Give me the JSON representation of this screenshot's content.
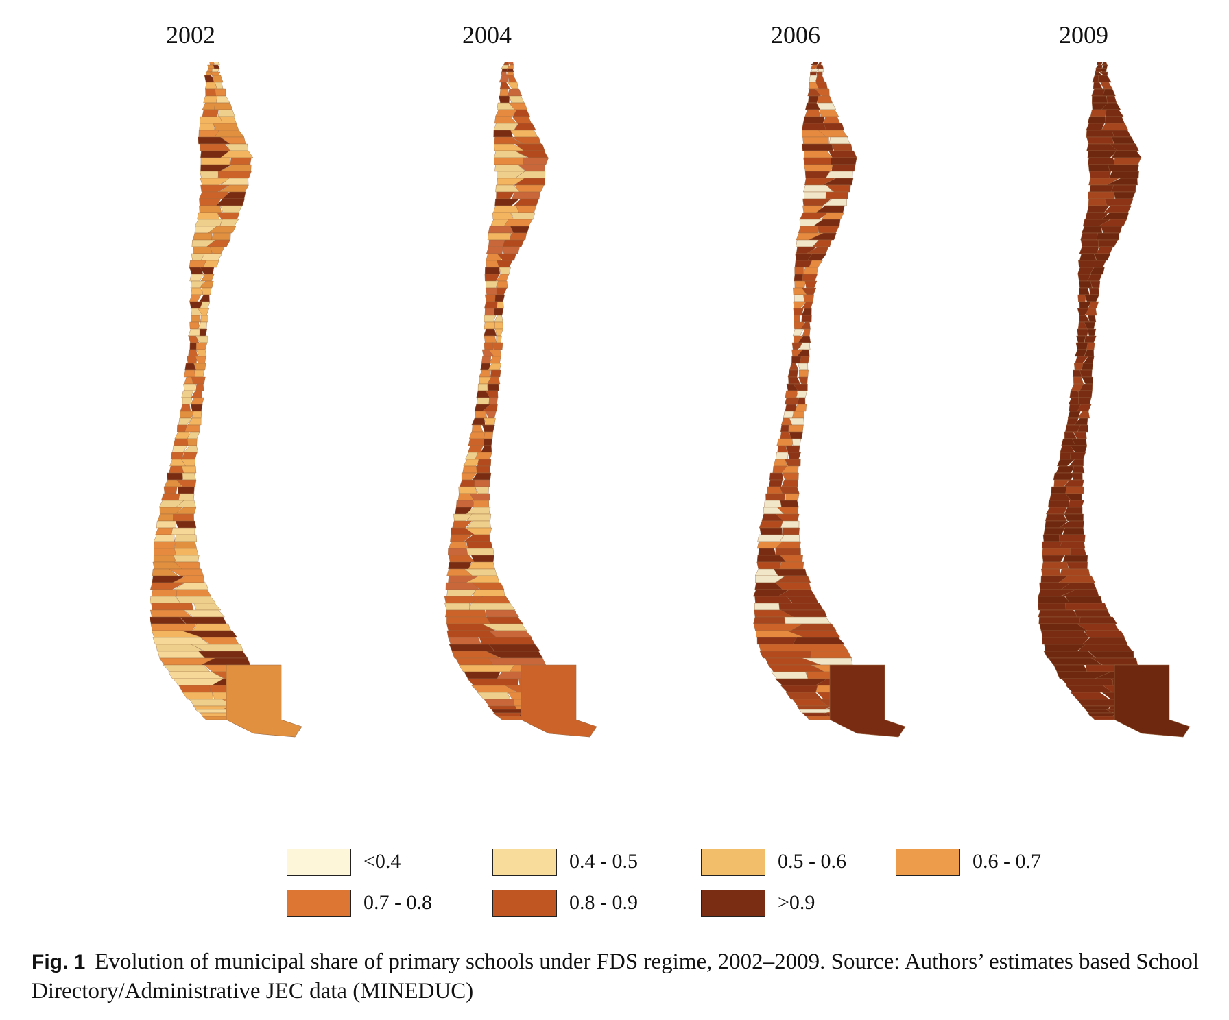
{
  "figure": {
    "caption_label": "Fig. 1",
    "caption_text": "Evolution of municipal share of primary schools under FDS regime, 2002–2009. Source: Authors’ estimates based School Directory/Administrative JEC data (MINEDUC)"
  },
  "maps": [
    {
      "year": "2002",
      "color_profile": [
        "#f3b560",
        "#e0903f",
        "#f6d999",
        "#e68a3f",
        "#cc6429",
        "#7a2c12",
        "#eed08c"
      ]
    },
    {
      "year": "2004",
      "color_profile": [
        "#e68a3f",
        "#cc6429",
        "#b24a1e",
        "#f3b560",
        "#7a2c12",
        "#eed08c",
        "#c9663a"
      ]
    },
    {
      "year": "2006",
      "color_profile": [
        "#b24a1e",
        "#7a2c12",
        "#cc6429",
        "#8d3416",
        "#a5461f",
        "#e68a3f",
        "#f1e6c8"
      ]
    },
    {
      "year": "2009",
      "color_profile": [
        "#7a2c12",
        "#6e2810",
        "#8d3416",
        "#7a2c12",
        "#a5461f",
        "#6e2810",
        "#7a2c12"
      ]
    }
  ],
  "legend": {
    "items": [
      {
        "label": "<0.4",
        "color": "#fdf6d8"
      },
      {
        "label": "0.4 - 0.5",
        "color": "#f8dc9b"
      },
      {
        "label": "0.5 - 0.6",
        "color": "#f3be6a"
      },
      {
        "label": "0.6 - 0.7",
        "color": "#ec9c4a"
      },
      {
        "label": "0.7 - 0.8",
        "color": "#dd7633"
      },
      {
        "label": "0.8 - 0.9",
        "color": "#c05722"
      },
      {
        "label": ">0.9",
        "color": "#7b2d14"
      }
    ]
  }
}
